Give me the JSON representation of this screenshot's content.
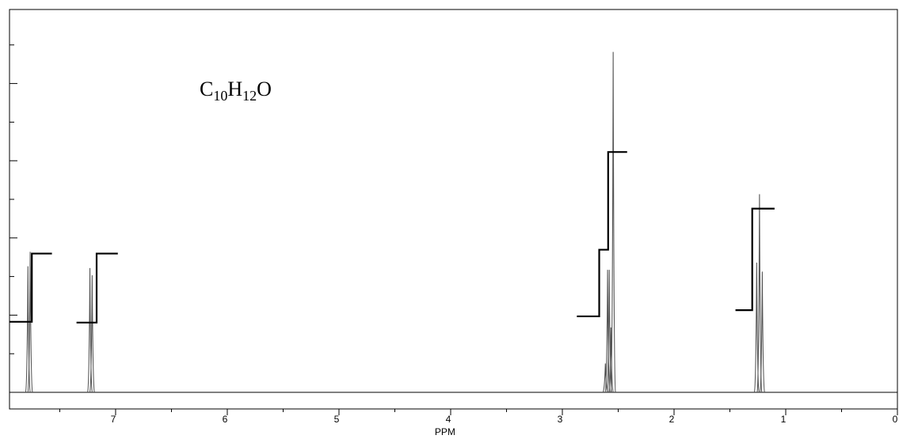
{
  "chart_data": {
    "type": "line",
    "title": "",
    "annotation": {
      "formula_parts": [
        {
          "text": "C",
          "sub": false
        },
        {
          "text": "10",
          "sub": true
        },
        {
          "text": "H",
          "sub": false
        },
        {
          "text": "12",
          "sub": true
        },
        {
          "text": "O",
          "sub": false
        }
      ]
    },
    "xlabel": "PPM",
    "ylabel": "",
    "x_reversed": true,
    "xlim": [
      7.95,
      0.0
    ],
    "ylim": [
      -0.12,
      2.02
    ],
    "x_ticks": [
      7,
      6,
      5,
      4,
      3,
      2,
      1,
      0
    ],
    "x_tick_labels": [
      "7",
      "6",
      "5",
      "4",
      "3",
      "2",
      "1",
      "0"
    ],
    "grid": false,
    "line_color": "#555555",
    "integral_color": "#000000",
    "peaks": [
      {
        "center": 7.77,
        "lines": [
          {
            "x": 7.785,
            "h": 0.7
          },
          {
            "x": 7.765,
            "h": 0.78
          }
        ]
      },
      {
        "center": 7.22,
        "lines": [
          {
            "x": 7.23,
            "h": 0.69
          },
          {
            "x": 7.21,
            "h": 0.65
          }
        ]
      },
      {
        "center": 2.57,
        "lines": [
          {
            "x": 2.615,
            "h": 0.16
          },
          {
            "x": 2.595,
            "h": 0.68
          },
          {
            "x": 2.58,
            "h": 0.68
          },
          {
            "x": 2.565,
            "h": 0.36
          },
          {
            "x": 2.545,
            "h": 1.89
          }
        ]
      },
      {
        "center": 1.23,
        "lines": [
          {
            "x": 1.26,
            "h": 0.72
          },
          {
            "x": 1.235,
            "h": 1.1
          },
          {
            "x": 1.21,
            "h": 0.67
          }
        ]
      }
    ],
    "integrals": [
      {
        "x_start": 7.95,
        "x_step": 7.75,
        "x_end": 7.57,
        "y_low": 0.91,
        "y_high": 1.79
      },
      {
        "x_start": 7.35,
        "x_step": 7.17,
        "x_end": 6.98,
        "y_low": 0.9,
        "y_high": 1.79
      },
      {
        "x_start": 2.87,
        "x_step": 2.67,
        "x_step2": 2.59,
        "x_end": 2.42,
        "y_low": 0.98,
        "y_mid": 1.84,
        "y_high": 3.1
      },
      {
        "x_start": 1.45,
        "x_step": 1.3,
        "x_end": 1.1,
        "y_low": 1.06,
        "y_high": 2.37
      }
    ]
  }
}
